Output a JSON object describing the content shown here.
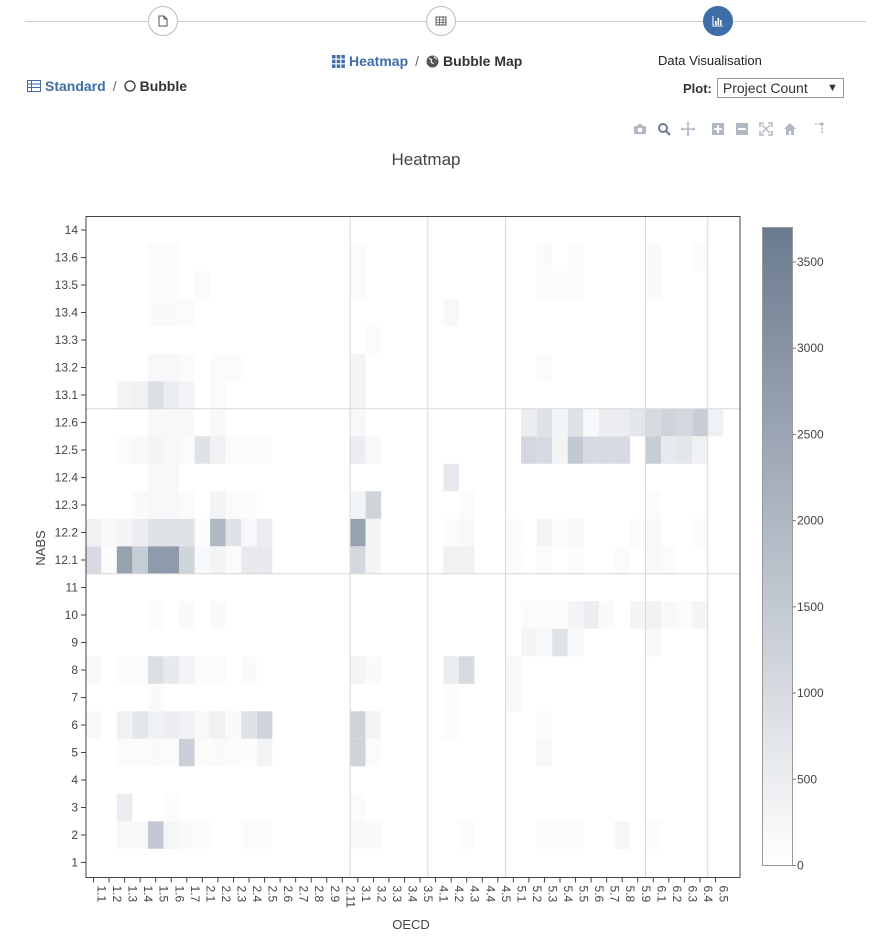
{
  "steps": [
    {
      "name": "document-icon",
      "active": false
    },
    {
      "name": "table-icon",
      "active": false
    },
    {
      "name": "bar-chart-icon",
      "active": true
    }
  ],
  "view_toggle": {
    "heatmap": "Heatmap",
    "separator": "/",
    "bubble_map": "Bubble Map"
  },
  "mode_toggle": {
    "standard": "Standard",
    "separator": "/",
    "bubble": "Bubble"
  },
  "data_visualisation": {
    "title": "Data Visualisation",
    "plot_label": "Plot:",
    "plot_value": "Project Count"
  },
  "modebar": [
    "camera-icon",
    "zoom-icon",
    "pan-icon",
    "zoom-in-icon",
    "zoom-out-icon",
    "autoscale-icon",
    "home-icon",
    "spike-icon"
  ],
  "colors": {
    "low": "#ffffff",
    "high": "#6b7a8f",
    "accent": "#3d6ea8"
  },
  "chart_data": {
    "type": "heatmap",
    "title": "Heatmap",
    "xlabel": "OECD",
    "ylabel": "NABS",
    "x_categories": [
      "1.1",
      "1.2",
      "1.3",
      "1.4",
      "1.5",
      "1.6",
      "1.7",
      "2.1",
      "2.2",
      "2.3",
      "2.4",
      "2.5",
      "2.6",
      "2.7",
      "2.8",
      "2.9",
      "2.11",
      "3.1",
      "3.2",
      "3.3",
      "3.4",
      "3.5",
      "4.1",
      "4.2",
      "4.3",
      "4.4",
      "4.5",
      "5.1",
      "5.2",
      "5.3",
      "5.4",
      "5.5",
      "5.6",
      "5.7",
      "5.8",
      "5.9",
      "6.1",
      "6.2",
      "6.3",
      "6.4",
      "6.5"
    ],
    "y_categories": [
      "1",
      "2",
      "3",
      "4",
      "5",
      "6",
      "7",
      "8",
      "9",
      "10",
      "11",
      "12.1",
      "12.2",
      "12.3",
      "12.4",
      "12.5",
      "12.6",
      "13.1",
      "13.2",
      "13.3",
      "13.4",
      "13.5",
      "13.6",
      "14"
    ],
    "colorbar": {
      "min": 0,
      "max": 3700,
      "ticks": [
        0,
        500,
        1000,
        1500,
        2000,
        2500,
        3000,
        3500
      ]
    },
    "z": [
      [
        0,
        0,
        0,
        0,
        0,
        0,
        0,
        0,
        0,
        0,
        0,
        0,
        0,
        0,
        0,
        0,
        0,
        0,
        0,
        0,
        0,
        0,
        0,
        0,
        0,
        0,
        0,
        0,
        0,
        0,
        0,
        0,
        0,
        0,
        0,
        0,
        0,
        0,
        0,
        0,
        0
      ],
      [
        0,
        0,
        200,
        200,
        1500,
        250,
        150,
        80,
        0,
        0,
        100,
        100,
        0,
        0,
        0,
        0,
        0,
        200,
        150,
        0,
        0,
        0,
        0,
        0,
        100,
        0,
        0,
        0,
        0,
        100,
        80,
        100,
        0,
        0,
        250,
        0,
        100,
        0,
        0,
        0,
        0
      ],
      [
        0,
        0,
        500,
        0,
        0,
        80,
        0,
        0,
        0,
        0,
        0,
        0,
        0,
        0,
        0,
        0,
        0,
        100,
        0,
        0,
        0,
        0,
        0,
        0,
        0,
        0,
        0,
        0,
        0,
        0,
        0,
        0,
        0,
        0,
        0,
        0,
        0,
        0,
        0,
        0,
        0
      ],
      [
        0,
        0,
        0,
        0,
        0,
        0,
        0,
        0,
        0,
        0,
        0,
        0,
        0,
        0,
        0,
        0,
        0,
        0,
        0,
        0,
        0,
        0,
        0,
        0,
        0,
        0,
        0,
        0,
        0,
        0,
        0,
        0,
        0,
        0,
        0,
        0,
        0,
        0,
        0,
        0,
        0
      ],
      [
        0,
        0,
        100,
        100,
        150,
        100,
        1300,
        100,
        150,
        100,
        80,
        300,
        0,
        0,
        0,
        0,
        0,
        1200,
        100,
        0,
        0,
        0,
        0,
        0,
        0,
        0,
        0,
        0,
        0,
        200,
        0,
        0,
        0,
        0,
        0,
        0,
        0,
        0,
        0,
        0,
        0
      ],
      [
        200,
        0,
        400,
        700,
        400,
        500,
        400,
        200,
        400,
        150,
        800,
        1200,
        0,
        0,
        0,
        0,
        0,
        1200,
        300,
        0,
        0,
        0,
        0,
        100,
        0,
        0,
        0,
        0,
        0,
        100,
        0,
        0,
        0,
        0,
        0,
        0,
        0,
        0,
        0,
        0,
        0
      ],
      [
        0,
        0,
        0,
        0,
        150,
        0,
        0,
        0,
        0,
        0,
        0,
        0,
        0,
        0,
        0,
        0,
        0,
        0,
        0,
        0,
        0,
        0,
        0,
        100,
        0,
        0,
        0,
        200,
        0,
        0,
        0,
        0,
        0,
        0,
        0,
        0,
        0,
        0,
        0,
        0,
        0
      ],
      [
        200,
        0,
        100,
        100,
        900,
        600,
        300,
        80,
        100,
        0,
        150,
        0,
        0,
        0,
        0,
        0,
        0,
        300,
        150,
        0,
        0,
        0,
        0,
        500,
        1000,
        0,
        0,
        200,
        0,
        0,
        0,
        0,
        0,
        0,
        0,
        0,
        0,
        0,
        0,
        0,
        0
      ],
      [
        0,
        0,
        0,
        0,
        0,
        0,
        0,
        0,
        0,
        0,
        0,
        0,
        0,
        0,
        0,
        0,
        0,
        0,
        0,
        0,
        0,
        0,
        0,
        0,
        0,
        0,
        0,
        0,
        300,
        200,
        800,
        200,
        0,
        0,
        0,
        0,
        200,
        0,
        0,
        0,
        0
      ],
      [
        0,
        0,
        0,
        0,
        100,
        0,
        150,
        0,
        150,
        0,
        0,
        0,
        0,
        0,
        0,
        0,
        0,
        0,
        0,
        0,
        0,
        0,
        0,
        0,
        0,
        0,
        0,
        0,
        100,
        100,
        100,
        300,
        500,
        150,
        0,
        300,
        400,
        200,
        100,
        300,
        0
      ],
      [
        0,
        0,
        0,
        0,
        0,
        0,
        0,
        0,
        0,
        0,
        0,
        0,
        0,
        0,
        0,
        0,
        0,
        0,
        0,
        0,
        0,
        0,
        0,
        0,
        0,
        0,
        0,
        0,
        0,
        0,
        0,
        0,
        0,
        0,
        0,
        0,
        0,
        0,
        0,
        0,
        0
      ],
      [
        1000,
        100,
        2600,
        1400,
        2800,
        2800,
        1200,
        200,
        300,
        100,
        600,
        600,
        0,
        0,
        0,
        0,
        0,
        1100,
        300,
        0,
        0,
        0,
        0,
        400,
        400,
        0,
        0,
        100,
        0,
        100,
        0,
        100,
        0,
        0,
        100,
        0,
        200,
        100,
        0,
        0,
        0
      ],
      [
        400,
        200,
        300,
        500,
        800,
        800,
        800,
        100,
        2000,
        800,
        200,
        500,
        0,
        0,
        0,
        0,
        0,
        2600,
        300,
        0,
        0,
        0,
        0,
        100,
        200,
        0,
        0,
        100,
        0,
        300,
        100,
        200,
        0,
        0,
        0,
        100,
        200,
        0,
        0,
        100,
        0
      ],
      [
        0,
        0,
        0,
        150,
        200,
        200,
        100,
        0,
        300,
        100,
        100,
        0,
        0,
        0,
        0,
        0,
        0,
        300,
        1200,
        0,
        0,
        0,
        0,
        0,
        100,
        0,
        0,
        0,
        0,
        0,
        0,
        0,
        0,
        0,
        0,
        0,
        100,
        0,
        0,
        0,
        0
      ],
      [
        0,
        0,
        0,
        0,
        200,
        200,
        0,
        0,
        0,
        0,
        0,
        0,
        0,
        0,
        0,
        0,
        0,
        0,
        0,
        0,
        0,
        0,
        0,
        600,
        0,
        0,
        0,
        0,
        0,
        0,
        0,
        0,
        0,
        0,
        0,
        0,
        0,
        0,
        0,
        0,
        0
      ],
      [
        0,
        0,
        100,
        200,
        300,
        200,
        100,
        800,
        400,
        100,
        100,
        100,
        0,
        0,
        0,
        0,
        0,
        500,
        200,
        0,
        0,
        0,
        0,
        0,
        0,
        0,
        0,
        0,
        1100,
        1000,
        300,
        1500,
        1000,
        1000,
        1000,
        0,
        1400,
        600,
        700,
        400,
        0
      ],
      [
        0,
        0,
        0,
        0,
        200,
        200,
        200,
        0,
        200,
        0,
        0,
        0,
        0,
        0,
        0,
        0,
        0,
        200,
        0,
        0,
        0,
        0,
        0,
        0,
        0,
        0,
        0,
        0,
        500,
        800,
        300,
        800,
        200,
        500,
        500,
        700,
        1000,
        1200,
        1100,
        1400,
        400
      ],
      [
        0,
        0,
        300,
        400,
        900,
        500,
        300,
        0,
        100,
        0,
        0,
        0,
        0,
        0,
        0,
        0,
        0,
        300,
        0,
        0,
        0,
        0,
        0,
        0,
        0,
        0,
        0,
        0,
        0,
        0,
        0,
        0,
        0,
        0,
        0,
        0,
        0,
        0,
        0,
        0,
        0
      ],
      [
        0,
        0,
        0,
        0,
        200,
        200,
        100,
        0,
        100,
        100,
        0,
        0,
        0,
        0,
        0,
        0,
        0,
        300,
        0,
        0,
        0,
        0,
        0,
        0,
        0,
        0,
        0,
        0,
        0,
        100,
        0,
        0,
        0,
        0,
        0,
        0,
        0,
        0,
        0,
        0,
        0
      ],
      [
        0,
        0,
        0,
        0,
        0,
        0,
        0,
        0,
        0,
        0,
        0,
        0,
        0,
        0,
        0,
        0,
        0,
        0,
        100,
        0,
        0,
        0,
        0,
        0,
        0,
        0,
        0,
        0,
        0,
        0,
        0,
        0,
        0,
        0,
        0,
        0,
        0,
        0,
        0,
        0,
        0
      ],
      [
        0,
        0,
        0,
        0,
        150,
        150,
        100,
        0,
        0,
        0,
        0,
        0,
        0,
        0,
        0,
        0,
        0,
        0,
        0,
        0,
        0,
        0,
        0,
        200,
        0,
        0,
        0,
        0,
        0,
        0,
        0,
        0,
        0,
        0,
        0,
        0,
        0,
        0,
        0,
        0,
        0
      ],
      [
        0,
        0,
        0,
        0,
        100,
        100,
        0,
        100,
        0,
        0,
        0,
        0,
        0,
        0,
        0,
        0,
        0,
        100,
        0,
        0,
        0,
        0,
        0,
        0,
        0,
        0,
        0,
        0,
        0,
        100,
        100,
        100,
        0,
        0,
        0,
        0,
        150,
        0,
        0,
        0,
        0
      ],
      [
        0,
        0,
        0,
        0,
        100,
        100,
        0,
        0,
        0,
        0,
        0,
        0,
        0,
        0,
        0,
        0,
        0,
        100,
        0,
        0,
        0,
        0,
        0,
        0,
        0,
        0,
        0,
        0,
        0,
        150,
        0,
        100,
        0,
        0,
        0,
        0,
        150,
        0,
        0,
        100,
        0
      ],
      [
        0,
        0,
        0,
        0,
        0,
        0,
        0,
        0,
        0,
        0,
        0,
        0,
        0,
        0,
        0,
        0,
        0,
        0,
        0,
        0,
        0,
        0,
        0,
        0,
        0,
        0,
        0,
        0,
        0,
        0,
        0,
        0,
        0,
        0,
        0,
        0,
        0,
        0,
        0,
        0,
        0
      ]
    ]
  }
}
